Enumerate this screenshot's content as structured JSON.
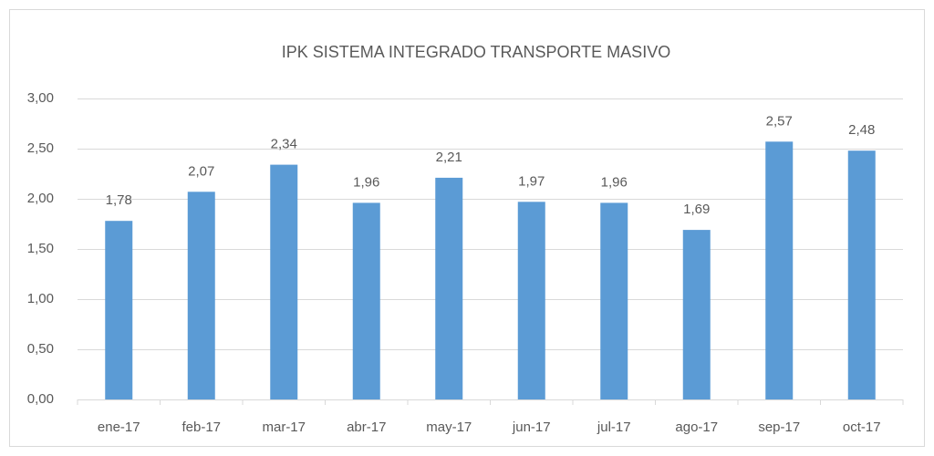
{
  "chart_data": {
    "type": "bar",
    "title": "IPK SISTEMA INTEGRADO TRANSPORTE MASIVO",
    "categories": [
      "ene-17",
      "feb-17",
      "mar-17",
      "abr-17",
      "may-17",
      "jun-17",
      "jul-17",
      "ago-17",
      "sep-17",
      "oct-17"
    ],
    "values": [
      1.78,
      2.07,
      2.34,
      1.96,
      2.21,
      1.97,
      1.96,
      1.69,
      2.57,
      2.48
    ],
    "value_labels": [
      "1,78",
      "2,07",
      "2,34",
      "1,96",
      "2,21",
      "1,97",
      "1,96",
      "1,69",
      "2,57",
      "2,48"
    ],
    "color": "#5b9bd5",
    "ylim": [
      0,
      3
    ],
    "yticks": [
      {
        "value": 0,
        "label": "0,00"
      },
      {
        "value": 0.5,
        "label": "0,50"
      },
      {
        "value": 1,
        "label": "1,00"
      },
      {
        "value": 1.5,
        "label": "1,50"
      },
      {
        "value": 2,
        "label": "2,00"
      },
      {
        "value": 2.5,
        "label": "2,50"
      },
      {
        "value": 3,
        "label": "3,00"
      }
    ],
    "grid": true
  }
}
